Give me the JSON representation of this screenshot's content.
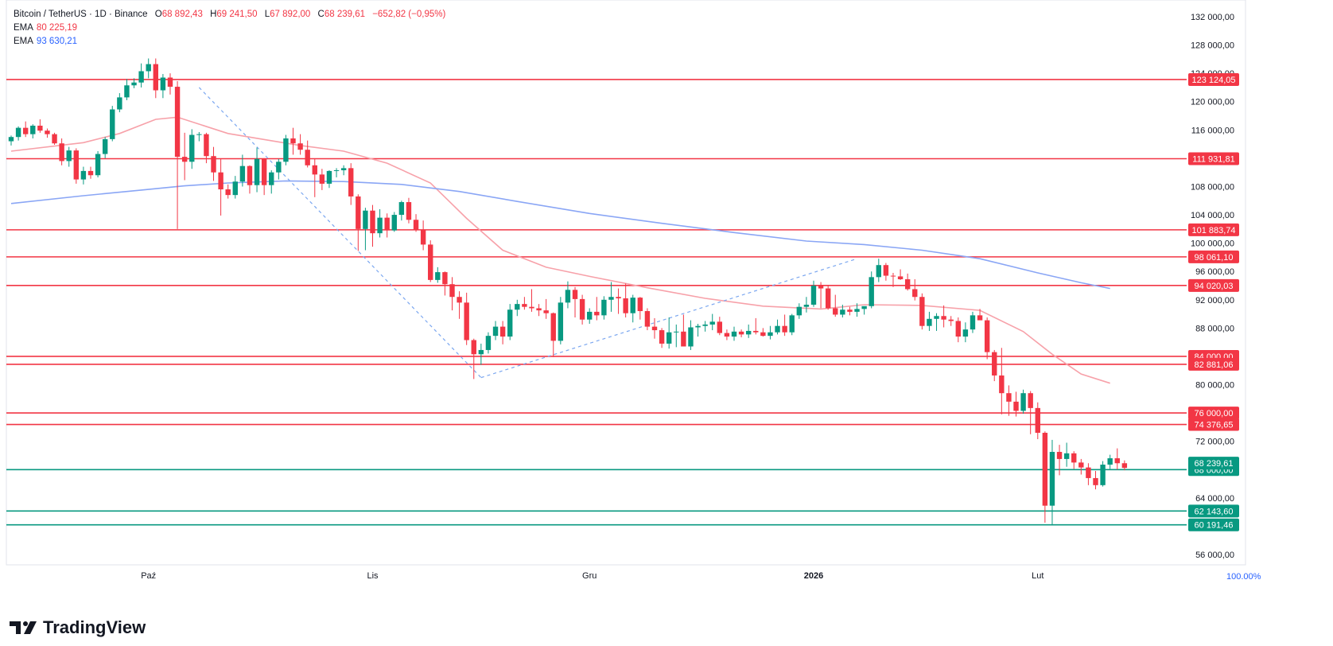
{
  "legend": {
    "symbol": "Bitcoin / TetherUS · 1D · Binance",
    "o_label": "O",
    "o": "68 892,43",
    "h_label": "H",
    "h": "69 241,50",
    "l_label": "L",
    "l": "67 892,00",
    "c_label": "C",
    "c": "68 239,61",
    "change": "−652,82 (−0,95%)",
    "ema1_label": "EMA",
    "ema1": "80 225,19",
    "ema2_label": "EMA",
    "ema2": "93 630,21"
  },
  "brand": {
    "name": "TradingView"
  },
  "zoom_label": "100.00%",
  "colors": {
    "up": "#089981",
    "down": "#f23645",
    "resistance": "#f23645",
    "support": "#089981",
    "ema_fast": "#f7a1a9",
    "ema_slow": "#8aa6f5",
    "trend": "#7ba7f0",
    "price_label_bg": "#089981"
  },
  "chart_data": {
    "type": "candlestick",
    "ylim": [
      52000,
      134000
    ],
    "y_ticks": [
      {
        "v": 56000,
        "label": "56 000,00"
      },
      {
        "v": 60000,
        "label": "60 000,00"
      },
      {
        "v": 64000,
        "label": "64 000,00"
      },
      {
        "v": 68000,
        "label": "68 000,00"
      },
      {
        "v": 72000,
        "label": "72 000,00"
      },
      {
        "v": 76000,
        "label": "76 000,00"
      },
      {
        "v": 80000,
        "label": "80 000,00"
      },
      {
        "v": 84000,
        "label": "84 000,00"
      },
      {
        "v": 88000,
        "label": "88 000,00"
      },
      {
        "v": 92000,
        "label": "92 000,00"
      },
      {
        "v": 96000,
        "label": "96 000,00"
      },
      {
        "v": 100000,
        "label": "100 000,00"
      },
      {
        "v": 104000,
        "label": "104 000,00"
      },
      {
        "v": 108000,
        "label": "108 000,00"
      },
      {
        "v": 112000,
        "label": "112 000,00"
      },
      {
        "v": 116000,
        "label": "116 000,00"
      },
      {
        "v": 120000,
        "label": "120 000,00"
      },
      {
        "v": 124000,
        "label": "124 000,00"
      },
      {
        "v": 128000,
        "label": "128 000,00"
      },
      {
        "v": 132000,
        "label": "132 000,00"
      }
    ],
    "x_ticks": [
      {
        "i": 19,
        "label": "Paź"
      },
      {
        "i": 50,
        "label": "Lis"
      },
      {
        "i": 80,
        "label": "Gru"
      },
      {
        "i": 111,
        "label": "2026"
      },
      {
        "i": 142,
        "label": "Lut"
      }
    ],
    "candles": [
      [
        114400,
        115200,
        113800,
        115000
      ],
      [
        115000,
        116500,
        114500,
        116300
      ],
      [
        116300,
        117200,
        115000,
        115400
      ],
      [
        115400,
        116800,
        114800,
        116600
      ],
      [
        116600,
        117500,
        115600,
        115900
      ],
      [
        115900,
        116200,
        114900,
        115400
      ],
      [
        115400,
        115600,
        113900,
        114100
      ],
      [
        114100,
        114800,
        111000,
        111600
      ],
      [
        111600,
        113600,
        110800,
        113100
      ],
      [
        113100,
        113400,
        108400,
        109000
      ],
      [
        109000,
        110800,
        108300,
        110200
      ],
      [
        110200,
        110800,
        109100,
        109600
      ],
      [
        109600,
        113000,
        109300,
        112600
      ],
      [
        112600,
        115000,
        112000,
        114700
      ],
      [
        114700,
        119400,
        114400,
        118900
      ],
      [
        118900,
        121200,
        118500,
        120600
      ],
      [
        120600,
        123200,
        120200,
        122300
      ],
      [
        122300,
        123300,
        121900,
        122700
      ],
      [
        122700,
        125400,
        122000,
        124300
      ],
      [
        124300,
        126100,
        123300,
        125300
      ],
      [
        125300,
        126100,
        120500,
        121600
      ],
      [
        121600,
        123900,
        120500,
        123400
      ],
      [
        123400,
        124000,
        121000,
        122100
      ],
      [
        122100,
        122900,
        102000,
        112200
      ],
      [
        112200,
        115600,
        108900,
        111500
      ],
      [
        111500,
        116100,
        110500,
        115300
      ],
      [
        115300,
        115700,
        114400,
        115400
      ],
      [
        115400,
        115600,
        111300,
        112300
      ],
      [
        112300,
        113600,
        108800,
        110000
      ],
      [
        110000,
        111900,
        103900,
        107600
      ],
      [
        107600,
        108300,
        106300,
        106800
      ],
      [
        106800,
        109500,
        106300,
        108700
      ],
      [
        108700,
        112500,
        108000,
        110900
      ],
      [
        110900,
        111000,
        107000,
        108200
      ],
      [
        108200,
        113500,
        107200,
        111900
      ],
      [
        111900,
        112000,
        106800,
        108200
      ],
      [
        108200,
        110300,
        107000,
        110000
      ],
      [
        110000,
        111900,
        109000,
        111500
      ],
      [
        111500,
        115300,
        111000,
        114800
      ],
      [
        114800,
        116300,
        112500,
        114100
      ],
      [
        114100,
        115400,
        112500,
        113200
      ],
      [
        113200,
        114500,
        110700,
        111000
      ],
      [
        111000,
        111900,
        106500,
        109700
      ],
      [
        109700,
        110500,
        107500,
        108400
      ],
      [
        108400,
        110300,
        107800,
        110200
      ],
      [
        110200,
        110600,
        109300,
        110300
      ],
      [
        110300,
        111000,
        109600,
        110600
      ],
      [
        110600,
        111300,
        105400,
        106600
      ],
      [
        106600,
        106900,
        98900,
        102000
      ],
      [
        102000,
        105000,
        99000,
        104600
      ],
      [
        104600,
        105400,
        99500,
        101400
      ],
      [
        101400,
        104800,
        100800,
        103600
      ],
      [
        103600,
        104200,
        100800,
        101800
      ],
      [
        101800,
        104400,
        101600,
        104000
      ],
      [
        104000,
        106000,
        103200,
        105800
      ],
      [
        105800,
        106400,
        102800,
        103300
      ],
      [
        103300,
        104100,
        101600,
        101900
      ],
      [
        101900,
        103200,
        99000,
        99800
      ],
      [
        99800,
        100400,
        94500,
        94800
      ],
      [
        94800,
        96600,
        94400,
        95900
      ],
      [
        95900,
        96000,
        92600,
        94200
      ],
      [
        94200,
        95200,
        90500,
        92400
      ],
      [
        92400,
        93200,
        89300,
        91600
      ],
      [
        91600,
        93000,
        85600,
        86300
      ],
      [
        86300,
        86500,
        80800,
        84300
      ],
      [
        84300,
        85800,
        82800,
        84900
      ],
      [
        84900,
        87400,
        84400,
        86900
      ],
      [
        86900,
        89000,
        86300,
        88200
      ],
      [
        88200,
        89000,
        85700,
        86800
      ],
      [
        86800,
        91400,
        86300,
        90600
      ],
      [
        90600,
        92000,
        89700,
        91400
      ],
      [
        91400,
        92400,
        90600,
        91000
      ],
      [
        91000,
        93500,
        90300,
        90800
      ],
      [
        90800,
        91400,
        89700,
        90500
      ],
      [
        90500,
        92100,
        89300,
        90100
      ],
      [
        90100,
        90200,
        83900,
        86200
      ],
      [
        86200,
        92400,
        85700,
        91600
      ],
      [
        91600,
        94600,
        90800,
        93400
      ],
      [
        93400,
        93800,
        89500,
        92100
      ],
      [
        92100,
        92700,
        88500,
        89200
      ],
      [
        89200,
        90800,
        88600,
        90300
      ],
      [
        90300,
        92400,
        89100,
        89800
      ],
      [
        89800,
        92500,
        89200,
        92000
      ],
      [
        92000,
        94500,
        90300,
        92400
      ],
      [
        92400,
        93600,
        90000,
        92200
      ],
      [
        92200,
        94300,
        89500,
        90100
      ],
      [
        90100,
        92700,
        88800,
        92300
      ],
      [
        92300,
        92400,
        89200,
        90400
      ],
      [
        90400,
        90800,
        87700,
        88200
      ],
      [
        88200,
        89400,
        86500,
        87700
      ],
      [
        87700,
        88000,
        85200,
        85800
      ],
      [
        85800,
        89500,
        85100,
        87400
      ],
      [
        87400,
        88500,
        85300,
        87500
      ],
      [
        87500,
        89900,
        86000,
        85400
      ],
      [
        85400,
        89100,
        84900,
        88100
      ],
      [
        88100,
        88600,
        86800,
        88300
      ],
      [
        88300,
        89000,
        87500,
        88500
      ],
      [
        88500,
        90000,
        87700,
        88900
      ],
      [
        88900,
        89600,
        87000,
        87300
      ],
      [
        87300,
        87800,
        86300,
        86800
      ],
      [
        86800,
        88200,
        86200,
        87500
      ],
      [
        87500,
        87800,
        86700,
        87100
      ],
      [
        87100,
        88500,
        86600,
        87600
      ],
      [
        87600,
        89400,
        87100,
        87400
      ],
      [
        87400,
        88000,
        86800,
        86900
      ],
      [
        86900,
        88300,
        86400,
        87400
      ],
      [
        87400,
        89200,
        87100,
        88300
      ],
      [
        88300,
        89900,
        86900,
        87400
      ],
      [
        87400,
        90000,
        87000,
        89800
      ],
      [
        89800,
        91500,
        89300,
        91000
      ],
      [
        91000,
        92400,
        90200,
        91300
      ],
      [
        91300,
        94700,
        91000,
        94000
      ],
      [
        94000,
        94500,
        90800,
        93600
      ],
      [
        93600,
        94000,
        90600,
        90800
      ],
      [
        90800,
        92700,
        89600,
        89900
      ],
      [
        89900,
        91300,
        89500,
        90600
      ],
      [
        90600,
        91000,
        89800,
        90300
      ],
      [
        90300,
        91500,
        89600,
        90700
      ],
      [
        90700,
        91000,
        89900,
        91100
      ],
      [
        91100,
        96000,
        90800,
        95200
      ],
      [
        95200,
        97800,
        94500,
        96900
      ],
      [
        96900,
        97200,
        94700,
        95400
      ],
      [
        95400,
        95800,
        93800,
        95300
      ],
      [
        95300,
        96300,
        94800,
        94900
      ],
      [
        94900,
        95700,
        93300,
        93500
      ],
      [
        93500,
        94900,
        91900,
        92400
      ],
      [
        92400,
        92900,
        87800,
        88300
      ],
      [
        88300,
        90300,
        87600,
        89300
      ],
      [
        89300,
        90100,
        87600,
        89700
      ],
      [
        89700,
        91200,
        88100,
        89200
      ],
      [
        89200,
        89700,
        88300,
        89000
      ],
      [
        89000,
        89500,
        86000,
        86800
      ],
      [
        86800,
        88800,
        86000,
        87800
      ],
      [
        87800,
        90300,
        87300,
        89800
      ],
      [
        89800,
        90700,
        89300,
        89100
      ],
      [
        89100,
        89500,
        83600,
        84600
      ],
      [
        84600,
        84900,
        80500,
        81300
      ],
      [
        81300,
        85200,
        75800,
        78800
      ],
      [
        78800,
        79900,
        75600,
        77600
      ],
      [
        77600,
        79000,
        75500,
        76300
      ],
      [
        76300,
        79300,
        75900,
        78800
      ],
      [
        78800,
        79100,
        73000,
        76700
      ],
      [
        76700,
        77500,
        72300,
        73200
      ],
      [
        73200,
        73400,
        60500,
        62900
      ],
      [
        62900,
        72200,
        60100,
        70500
      ],
      [
        70500,
        71500,
        67200,
        69500
      ],
      [
        69500,
        71800,
        68400,
        70300
      ],
      [
        70300,
        70600,
        68100,
        69000
      ],
      [
        69000,
        69500,
        67300,
        68300
      ],
      [
        68300,
        68900,
        65800,
        66800
      ],
      [
        66800,
        67800,
        65200,
        65800
      ],
      [
        65800,
        69200,
        65600,
        68700
      ],
      [
        68700,
        70100,
        68100,
        69600
      ],
      [
        69600,
        71000,
        68000,
        68900
      ],
      [
        68900,
        69300,
        67900,
        68240
      ]
    ],
    "horizontal_levels": [
      {
        "value": 123124.05,
        "label": "123 124,05",
        "kind": "resistance"
      },
      {
        "value": 111931.81,
        "label": "111 931,81",
        "kind": "resistance"
      },
      {
        "value": 101883.74,
        "label": "101 883,74",
        "kind": "resistance"
      },
      {
        "value": 98061.1,
        "label": "98 061,10",
        "kind": "resistance"
      },
      {
        "value": 94020.03,
        "label": "94 020,03",
        "kind": "resistance"
      },
      {
        "value": 84000.0,
        "label": "84 000,00",
        "kind": "resistance"
      },
      {
        "value": 82881.06,
        "label": "82 881,06",
        "kind": "resistance"
      },
      {
        "value": 76000.0,
        "label": "76 000,00",
        "kind": "resistance"
      },
      {
        "value": 74376.65,
        "label": "74 376,65",
        "kind": "resistance"
      },
      {
        "value": 68000.0,
        "label": "68 000,00",
        "kind": "support"
      },
      {
        "value": 62143.6,
        "label": "62 143,60",
        "kind": "support"
      },
      {
        "value": 60191.46,
        "label": "60 191,46",
        "kind": "support"
      }
    ],
    "current_price": {
      "value": 68239.61,
      "label": "68 239,61"
    },
    "ema_fast": [
      [
        0,
        113000
      ],
      [
        10,
        114200
      ],
      [
        15,
        115500
      ],
      [
        20,
        117500
      ],
      [
        23,
        117800
      ],
      [
        30,
        115500
      ],
      [
        40,
        113800
      ],
      [
        46,
        113000
      ],
      [
        52,
        111300
      ],
      [
        58,
        108500
      ],
      [
        63,
        103500
      ],
      [
        68,
        99000
      ],
      [
        74,
        96600
      ],
      [
        80,
        95300
      ],
      [
        88,
        93700
      ],
      [
        96,
        92200
      ],
      [
        104,
        91100
      ],
      [
        112,
        90700
      ],
      [
        118,
        91300
      ],
      [
        126,
        91200
      ],
      [
        134,
        90500
      ],
      [
        140,
        87500
      ],
      [
        144,
        84300
      ],
      [
        148,
        81500
      ],
      [
        152,
        80200
      ]
    ],
    "ema_slow": [
      [
        0,
        105600
      ],
      [
        10,
        106700
      ],
      [
        18,
        107500
      ],
      [
        24,
        108100
      ],
      [
        30,
        108500
      ],
      [
        38,
        108800
      ],
      [
        46,
        108700
      ],
      [
        54,
        108300
      ],
      [
        62,
        107300
      ],
      [
        70,
        105900
      ],
      [
        80,
        104200
      ],
      [
        90,
        102800
      ],
      [
        100,
        101500
      ],
      [
        110,
        100300
      ],
      [
        118,
        99800
      ],
      [
        126,
        99000
      ],
      [
        134,
        97800
      ],
      [
        142,
        95800
      ],
      [
        148,
        94400
      ],
      [
        152,
        93600
      ]
    ],
    "trendlines": [
      {
        "from": [
          26,
          122000
        ],
        "to": [
          65,
          81000
        ]
      },
      {
        "from": [
          65,
          81000
        ],
        "to": [
          117,
          97800
        ]
      }
    ]
  }
}
